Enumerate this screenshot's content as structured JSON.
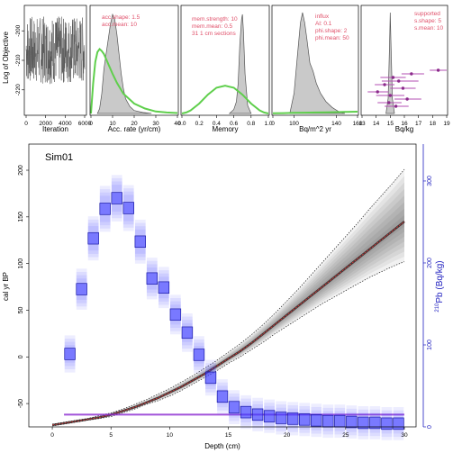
{
  "figure": {
    "ylabel_top": "Log of Objective",
    "main_title": "Sim01",
    "main_xlabel": "Depth (cm)",
    "main_ylabel_left": "cal yr BP",
    "main_ylabel_right_sup": "210",
    "main_ylabel_right_rest": "Pb (Bq/kg)"
  },
  "panels": {
    "iteration": {
      "xlabel": "Iteration",
      "xticks": [
        "0",
        "2000",
        "4000",
        "6000"
      ],
      "yticks": [
        "-200",
        "-210",
        "-220"
      ]
    },
    "acc": {
      "xlabel": "Acc. rate (yr/cm)",
      "xticks": [
        "0",
        "10",
        "20",
        "30",
        "40"
      ],
      "note1": "acc.shape: 1.5",
      "note2": "acc.mean: 10"
    },
    "memory": {
      "xlabel": "Memory",
      "xticks": [
        "0.0",
        "0.2",
        "0.4",
        "0.6",
        "0.8",
        "1.0"
      ],
      "note1": "mem.strength: 10",
      "note2": "mem.mean: 0.5",
      "note3": "31 1 cm sections"
    },
    "influx": {
      "xlabel": "Bq/m^2 yr",
      "xticks": [
        "0",
        "100",
        "140",
        "160"
      ],
      "note1": "influx",
      "note2": "Al: 0.1",
      "note3": "phi.shape: 2",
      "note4": "phi.mean: 50"
    },
    "supported": {
      "xlabel": "Bq/kg",
      "xticks": [
        "13",
        "14",
        "15",
        "16",
        "17",
        "18",
        "19"
      ],
      "note1": "supported",
      "note2": "s.shape: 5",
      "note3": "s.mean: 10"
    }
  },
  "chart_data": [
    {
      "type": "line",
      "title": "",
      "xlabel": "Iteration",
      "ylabel": "Log of Objective",
      "xlim": [
        0,
        6000
      ],
      "ylim": [
        -228,
        -192
      ],
      "band": [
        -218,
        -195
      ]
    },
    {
      "type": "area",
      "xlabel": "Acc. rate (yr/cm)",
      "xlim": [
        0,
        40
      ],
      "posterior": {
        "x": [
          3,
          4,
          5,
          6,
          7,
          8,
          9,
          10,
          11,
          12,
          13,
          14,
          15,
          16,
          18,
          20,
          24,
          28
        ],
        "y": [
          0.0,
          0.05,
          0.2,
          0.45,
          0.6,
          0.75,
          0.9,
          1.0,
          0.95,
          0.8,
          0.6,
          0.4,
          0.25,
          0.15,
          0.07,
          0.03,
          0.01,
          0.0
        ]
      },
      "prior": {
        "x": [
          0,
          1,
          2,
          3,
          4,
          5,
          6,
          7,
          8,
          10,
          12,
          15,
          20,
          25,
          30,
          35,
          40
        ],
        "y": [
          0.0,
          0.3,
          0.52,
          0.62,
          0.65,
          0.63,
          0.6,
          0.55,
          0.5,
          0.4,
          0.31,
          0.2,
          0.1,
          0.05,
          0.02,
          0.01,
          0.005
        ]
      }
    },
    {
      "type": "area",
      "xlabel": "Memory",
      "xlim": [
        0,
        1
      ],
      "posterior": {
        "x": [
          0.55,
          0.6,
          0.63,
          0.65,
          0.67,
          0.69,
          0.7,
          0.71,
          0.73,
          0.76,
          0.8
        ],
        "y": [
          0.0,
          0.04,
          0.12,
          0.3,
          0.7,
          0.95,
          1.0,
          0.85,
          0.4,
          0.08,
          0.0
        ]
      },
      "prior": {
        "x": [
          0.0,
          0.05,
          0.1,
          0.2,
          0.3,
          0.4,
          0.5,
          0.6,
          0.7,
          0.8,
          0.9,
          0.95,
          1.0
        ],
        "y": [
          0.0,
          0.01,
          0.03,
          0.1,
          0.19,
          0.26,
          0.28,
          0.26,
          0.19,
          0.1,
          0.03,
          0.01,
          0.0
        ]
      }
    },
    {
      "type": "area",
      "xlabel": "Bq/m^2 yr",
      "xlim": [
        80,
        160
      ],
      "posterior": {
        "x": [
          96,
          100,
          103,
          106,
          108,
          110,
          112,
          115,
          118,
          121,
          125,
          130,
          136,
          142,
          148
        ],
        "y": [
          0.0,
          0.2,
          0.55,
          0.9,
          1.0,
          0.9,
          0.75,
          0.5,
          0.42,
          0.3,
          0.2,
          0.12,
          0.06,
          0.02,
          0.0
        ]
      },
      "prior": {
        "x": [
          80,
          90,
          100,
          110,
          120,
          130,
          140,
          150,
          160
        ],
        "y": [
          0.002,
          0.004,
          0.006,
          0.008,
          0.01,
          0.012,
          0.014,
          0.016,
          0.018
        ]
      }
    },
    {
      "type": "scatter",
      "xlabel": "Bq/kg",
      "xlim": [
        13,
        19
      ],
      "posterior": {
        "x": [
          14.7,
          14.85,
          14.95,
          15.0,
          15.05,
          15.15,
          15.3
        ],
        "y": [
          0.0,
          0.15,
          0.7,
          1.0,
          0.7,
          0.15,
          0.0
        ]
      },
      "points": [
        {
          "x": 18.4,
          "lo": 17.8,
          "hi": 19.0
        },
        {
          "x": 16.5,
          "lo": 15.8,
          "hi": 17.4
        },
        {
          "x": 15.2,
          "lo": 14.3,
          "hi": 16.1
        },
        {
          "x": 15.6,
          "lo": 14.4,
          "hi": 17.0
        },
        {
          "x": 14.6,
          "lo": 13.9,
          "hi": 15.3
        },
        {
          "x": 15.9,
          "lo": 15.0,
          "hi": 16.8
        },
        {
          "x": 14.1,
          "lo": 13.4,
          "hi": 14.9
        },
        {
          "x": 15.0,
          "lo": 14.0,
          "hi": 16.0
        },
        {
          "x": 16.2,
          "lo": 15.3,
          "hi": 17.2
        },
        {
          "x": 14.9,
          "lo": 14.1,
          "hi": 15.8
        },
        {
          "x": 15.4,
          "lo": 14.6,
          "hi": 16.3
        }
      ]
    },
    {
      "type": "line",
      "title": "Sim01",
      "xlabel": "Depth (cm)",
      "ylabel": "cal yr BP",
      "xlim": [
        -2,
        31
      ],
      "ylim": [
        -75,
        228
      ],
      "y2label": "210Pb (Bq/kg)",
      "y2lim": [
        0,
        345
      ],
      "xticks": [
        0,
        5,
        10,
        15,
        20,
        25,
        30
      ],
      "yticks": [
        -50,
        0,
        50,
        100,
        150,
        200
      ],
      "y2ticks": [
        0,
        100,
        200,
        300
      ],
      "age_depth": {
        "depth": [
          0,
          1,
          2,
          3,
          4,
          5,
          6,
          7,
          8,
          9,
          10,
          11,
          12,
          13,
          14,
          15,
          16,
          17,
          18,
          19,
          20,
          21,
          22,
          23,
          24,
          25,
          26,
          27,
          28,
          29,
          30
        ],
        "mean": [
          -73,
          -71,
          -69,
          -67,
          -65,
          -62,
          -58,
          -54,
          -49,
          -44,
          -38,
          -32,
          -25,
          -18,
          -10,
          -2,
          6,
          15,
          25,
          35,
          45,
          55,
          65,
          75,
          85,
          95,
          105,
          115,
          125,
          135,
          145
        ],
        "upper": [
          -72,
          -70,
          -68,
          -66,
          -63,
          -60,
          -56,
          -51,
          -46,
          -40,
          -34,
          -27,
          -20,
          -12,
          -4,
          5,
          14,
          24,
          35,
          47,
          60,
          73,
          87,
          101,
          115,
          129,
          143,
          158,
          172,
          186,
          201
        ],
        "lower": [
          -74,
          -72,
          -70,
          -68,
          -66,
          -64,
          -60,
          -56,
          -51,
          -47,
          -42,
          -36,
          -29,
          -22,
          -15,
          -7,
          0,
          8,
          16,
          25,
          33,
          41,
          49,
          57,
          64,
          71,
          78,
          85,
          91,
          97,
          102
        ]
      },
      "pb210": {
        "depth": [
          1.5,
          2.5,
          3.5,
          4.5,
          5.5,
          6.5,
          7.5,
          8.5,
          9.5,
          10.5,
          11.5,
          12.5,
          13.5,
          14.5,
          15.5,
          16.5,
          17.5,
          18.5,
          19.5,
          20.5,
          21.5,
          22.5,
          23.5,
          24.5,
          25.5,
          26.5,
          27.5,
          28.5,
          29.5
        ],
        "value": [
          89,
          168,
          230,
          266,
          279,
          267,
          226,
          181,
          170,
          137,
          115,
          88,
          60,
          37,
          24,
          18,
          15,
          13,
          11,
          10,
          9,
          8,
          7,
          7,
          6,
          5,
          5,
          4,
          4
        ]
      },
      "supported": {
        "depth_range": [
          1,
          30
        ],
        "value": 15
      }
    }
  ]
}
